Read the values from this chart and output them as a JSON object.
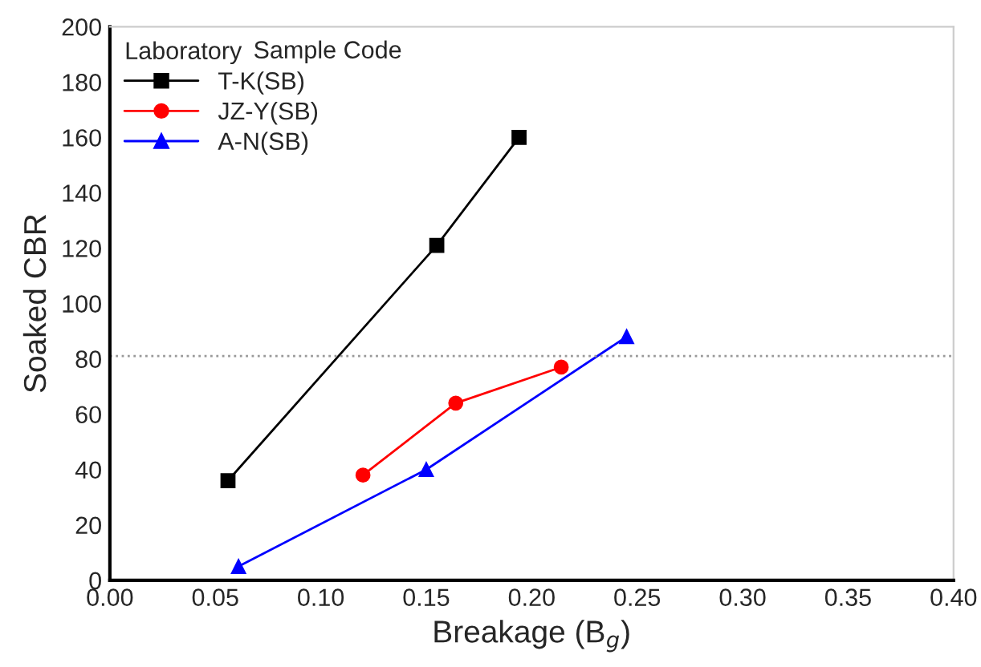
{
  "chart_data": {
    "type": "line",
    "xlabel": "Breakage (B$_{g}$)",
    "ylabel": "Soaked CBR",
    "legend_title": "Laboratory",
    "annotations": [
      "Sample Code"
    ],
    "series": [
      {
        "name": "T-K(SB)",
        "color": "#000000",
        "marker": "square",
        "x": [
          0.056,
          0.155,
          0.194
        ],
        "values": [
          36,
          121,
          160
        ]
      },
      {
        "name": "JZ-Y(SB)",
        "color": "#ff0000",
        "marker": "circle",
        "x": [
          0.12,
          0.164,
          0.214
        ],
        "values": [
          38,
          64,
          77
        ]
      },
      {
        "name": "A-N(SB)",
        "color": "#0000ff",
        "marker": "triangle",
        "x": [
          0.061,
          0.15,
          0.245
        ],
        "values": [
          5,
          40,
          88
        ]
      }
    ],
    "xlim": [
      0,
      0.4
    ],
    "xticks": [
      {
        "value": 0,
        "label": "0.00"
      },
      {
        "value": 0.05,
        "label": "0.05"
      },
      {
        "value": 0.1,
        "label": "0.10"
      },
      {
        "value": 0.15,
        "label": "0.15"
      },
      {
        "value": 0.2,
        "label": "0.20"
      },
      {
        "value": 0.25,
        "label": "0.25"
      },
      {
        "value": 0.3,
        "label": "0.30"
      },
      {
        "value": 0.35,
        "label": "0.35"
      },
      {
        "value": 0.4,
        "label": "0.40"
      }
    ],
    "ylim": [
      0,
      200
    ],
    "yticks": [
      0,
      20,
      40,
      60,
      80,
      100,
      120,
      140,
      160,
      180,
      200
    ],
    "ref_lines": [
      {
        "axis": "y",
        "value": 81,
        "color": "#999999",
        "line_style": "dotted"
      }
    ],
    "grid": false,
    "legend": "top left",
    "line_style": "solid"
  }
}
